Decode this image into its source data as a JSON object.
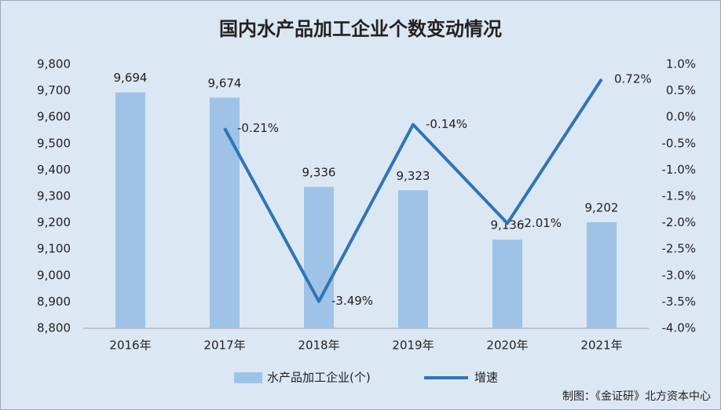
{
  "chart_data": {
    "type": "bar-line",
    "title": "国内水产品加工企业个数变动情况",
    "categories": [
      "2016年",
      "2017年",
      "2018年",
      "2019年",
      "2020年",
      "2021年"
    ],
    "series": [
      {
        "name": "水产品加工企业(个)",
        "type": "bar",
        "color": "#9fc3e7",
        "values": [
          9694,
          9674,
          9336,
          9323,
          9136,
          9202
        ],
        "value_labels": [
          "9,694",
          "9,674",
          "9,336",
          "9,323",
          "9,136",
          "9,202"
        ]
      },
      {
        "name": "增速",
        "type": "line",
        "axis": "y2",
        "color": "#2e75b6",
        "values": [
          null,
          -0.21,
          -3.49,
          -0.14,
          -2.01,
          0.72
        ],
        "value_labels": [
          null,
          "-0.21%",
          "-3.49%",
          "-0.14%",
          "-2.01%",
          "0.72%"
        ]
      }
    ],
    "ylim": [
      8800,
      9800
    ],
    "yticks": [
      {
        "value": 8800,
        "label": "8,800"
      },
      {
        "value": 8900,
        "label": "8,900"
      },
      {
        "value": 9000,
        "label": "9,000"
      },
      {
        "value": 9100,
        "label": "9,100"
      },
      {
        "value": 9200,
        "label": "9,200"
      },
      {
        "value": 9300,
        "label": "9,300"
      },
      {
        "value": 9400,
        "label": "9,400"
      },
      {
        "value": 9500,
        "label": "9,500"
      },
      {
        "value": 9600,
        "label": "9,600"
      },
      {
        "value": 9700,
        "label": "9,700"
      },
      {
        "value": 9800,
        "label": "9,800"
      }
    ],
    "y2lim": [
      -4,
      1
    ],
    "y2ticks": [
      {
        "value": -4,
        "label": "-4.0%"
      },
      {
        "value": -3.5,
        "label": "-3.5%"
      },
      {
        "value": -3,
        "label": "-3.0%"
      },
      {
        "value": -2.5,
        "label": "-2.5%"
      },
      {
        "value": -2,
        "label": "-2.0%"
      },
      {
        "value": -1.5,
        "label": "-1.5%"
      },
      {
        "value": -1,
        "label": "-1.0%"
      },
      {
        "value": -0.5,
        "label": "-0.5%"
      },
      {
        "value": 0,
        "label": "0.0%"
      },
      {
        "value": 0.5,
        "label": "0.5%"
      },
      {
        "value": 1,
        "label": "1.0%"
      }
    ],
    "legend": "bottom",
    "source": "制图：《金证研》北方资本中心"
  }
}
